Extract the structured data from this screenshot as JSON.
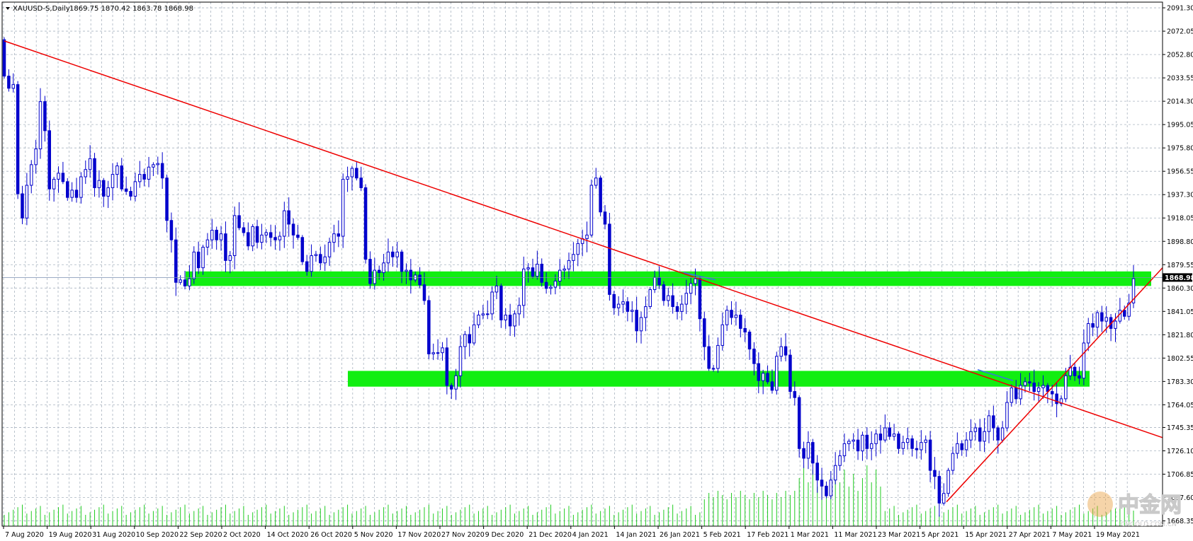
{
  "header": {
    "symbol_label": "XAUUSD-S,Daily",
    "ohlc": "1869.75 1870.42 1863.78 1868.98"
  },
  "watermark": {
    "text": "中金网",
    "url": "CNGOLD.COM.CN"
  },
  "chart_data": {
    "type": "candlestick",
    "title": "XAUUSD-S,Daily",
    "current_price": "1868.98",
    "y_tick_labels": [
      "2091.30",
      "2072.05",
      "2052.80",
      "2033.55",
      "2014.30",
      "1995.05",
      "1975.80",
      "1956.55",
      "1937.30",
      "1918.05",
      "1898.80",
      "1879.55",
      "1860.30",
      "1841.05",
      "1821.80",
      "1802.55",
      "1783.30",
      "1764.05",
      "1745.35",
      "1726.10",
      "1706.85",
      "1687.60",
      "1668.35"
    ],
    "ylim": [
      1664.0,
      2096.0
    ],
    "x_tick_labels": [
      "7 Aug 2020",
      "19 Aug 2020",
      "31 Aug 2020",
      "10 Sep 2020",
      "22 Sep 2020",
      "2 Oct 2020",
      "14 Oct 2020",
      "26 Oct 2020",
      "5 Nov 2020",
      "17 Nov 2020",
      "27 Nov 2020",
      "9 Dec 2020",
      "21 Dec 2020",
      "4 Jan 2021",
      "14 Jan 2021",
      "26 Jan 2021",
      "5 Feb 2021",
      "17 Feb 2021",
      "1 Mar 2021",
      "11 Mar 2021",
      "23 Mar 2021",
      "5 Apr 2021",
      "15 Apr 2021",
      "27 Apr 2021",
      "7 May 2021",
      "19 May 2021"
    ],
    "close_series": [
      2035,
      2025,
      2028,
      1938,
      1918,
      1945,
      1962,
      1975,
      2014,
      1990,
      1942,
      1950,
      1955,
      1948,
      1935,
      1941,
      1935,
      1952,
      1958,
      1967,
      1943,
      1949,
      1936,
      1943,
      1954,
      1961,
      1942,
      1940,
      1936,
      1948,
      1954,
      1950,
      1960,
      1962,
      1963,
      1951,
      1916,
      1900,
      1865,
      1867,
      1862,
      1868,
      1890,
      1877,
      1894,
      1900,
      1908,
      1900,
      1905,
      1883,
      1887,
      1920,
      1910,
      1906,
      1895,
      1911,
      1898,
      1904,
      1906,
      1902,
      1900,
      1903,
      1924,
      1913,
      1904,
      1902,
      1882,
      1874,
      1887,
      1888,
      1881,
      1886,
      1898,
      1905,
      1903,
      1950,
      1952,
      1959,
      1951,
      1943,
      1884,
      1864,
      1875,
      1873,
      1881,
      1890,
      1886,
      1890,
      1874,
      1875,
      1867,
      1871,
      1863,
      1850,
      1806,
      1807,
      1807,
      1811,
      1780,
      1777,
      1788,
      1812,
      1822,
      1815,
      1830,
      1838,
      1839,
      1839,
      1857,
      1862,
      1834,
      1838,
      1829,
      1839,
      1846,
      1876,
      1877,
      1870,
      1880,
      1865,
      1860,
      1861,
      1866,
      1875,
      1876,
      1883,
      1888,
      1897,
      1901,
      1904,
      1945,
      1951,
      1923,
      1913,
      1855,
      1844,
      1847,
      1849,
      1841,
      1842,
      1825,
      1836,
      1845,
      1859,
      1869,
      1863,
      1850,
      1854,
      1845,
      1841,
      1847,
      1856,
      1864,
      1868,
      1835,
      1812,
      1794,
      1794,
      1813,
      1830,
      1842,
      1836,
      1838,
      1827,
      1824,
      1810,
      1798,
      1784,
      1790,
      1783,
      1776,
      1804,
      1812,
      1805,
      1775,
      1770,
      1728,
      1720,
      1733,
      1716,
      1702,
      1697,
      1689,
      1702,
      1714,
      1722,
      1732,
      1734,
      1735,
      1726,
      1739,
      1728,
      1732,
      1740,
      1735,
      1745,
      1738,
      1740,
      1728,
      1733,
      1736,
      1728,
      1727,
      1733,
      1735,
      1710,
      1705,
      1683,
      1691,
      1710,
      1724,
      1732,
      1727,
      1735,
      1742,
      1745,
      1734,
      1742,
      1755,
      1745,
      1735,
      1745,
      1766,
      1778,
      1769,
      1780,
      1783,
      1782,
      1775,
      1778,
      1780,
      1775,
      1773,
      1765,
      1769,
      1788,
      1795,
      1788,
      1786,
      1815,
      1831,
      1828,
      1840,
      1833,
      1836,
      1827,
      1833,
      1842,
      1837,
      1848,
      1868
    ]
  }
}
